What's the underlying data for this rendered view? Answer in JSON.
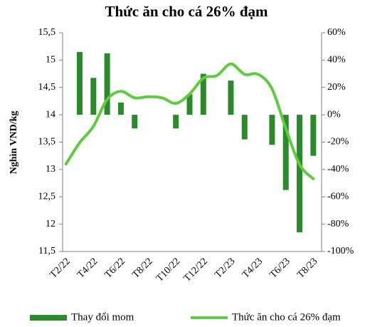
{
  "chart_data": {
    "type": "bar-line",
    "title": "Thức ăn cho cá 26% đạm",
    "ylabel": "Nghìn VND/kg",
    "categories": [
      "T2/22",
      null,
      "T4/22",
      null,
      "T6/22",
      null,
      "T8/22",
      null,
      "T10/22",
      null,
      "T12/22",
      null,
      "T2/23",
      null,
      "T4/23",
      null,
      "T6/23",
      null,
      "T8/23"
    ],
    "series": [
      {
        "name": "Thay đổi mom",
        "type": "bar",
        "axis": "y2",
        "color": "#2b8a2b",
        "values": [
          0,
          46,
          27,
          45,
          9,
          -10,
          0,
          0,
          -10,
          15,
          30,
          0,
          25,
          -18,
          0,
          -22,
          -55,
          -86,
          -30
        ]
      },
      {
        "name": "Thức ăn cho cá 26% đạm",
        "type": "line",
        "color": "#5fcc3f",
        "values": [
          13.1,
          13.49,
          13.79,
          14.28,
          14.43,
          14.31,
          14.33,
          14.31,
          14.21,
          14.38,
          14.67,
          14.72,
          14.93,
          14.74,
          14.74,
          14.47,
          13.75,
          13.09,
          12.83
        ]
      }
    ],
    "ylim": [
      11.5,
      15.5
    ],
    "yticks": [
      {
        "value": 11.5,
        "label": "11,5"
      },
      12,
      {
        "value": 12.5,
        "label": "12,5"
      },
      13,
      {
        "value": 13.5,
        "label": "13,5"
      },
      14,
      {
        "value": 14.5,
        "label": "14,5"
      },
      15,
      {
        "value": 15.5,
        "label": "15,5"
      }
    ],
    "y2lim": [
      -100,
      60
    ],
    "y2ticks": [
      {
        "value": -100,
        "label": "-100%"
      },
      {
        "value": -80,
        "label": "-80%"
      },
      {
        "value": -60,
        "label": "-60%"
      },
      {
        "value": -40,
        "label": "-40%"
      },
      {
        "value": -20,
        "label": "-20%"
      },
      {
        "value": 0,
        "label": "0%"
      },
      {
        "value": 20,
        "label": "20%"
      },
      {
        "value": 40,
        "label": "40%"
      },
      {
        "value": 60,
        "label": "60%"
      }
    ],
    "legend": "bottom"
  }
}
